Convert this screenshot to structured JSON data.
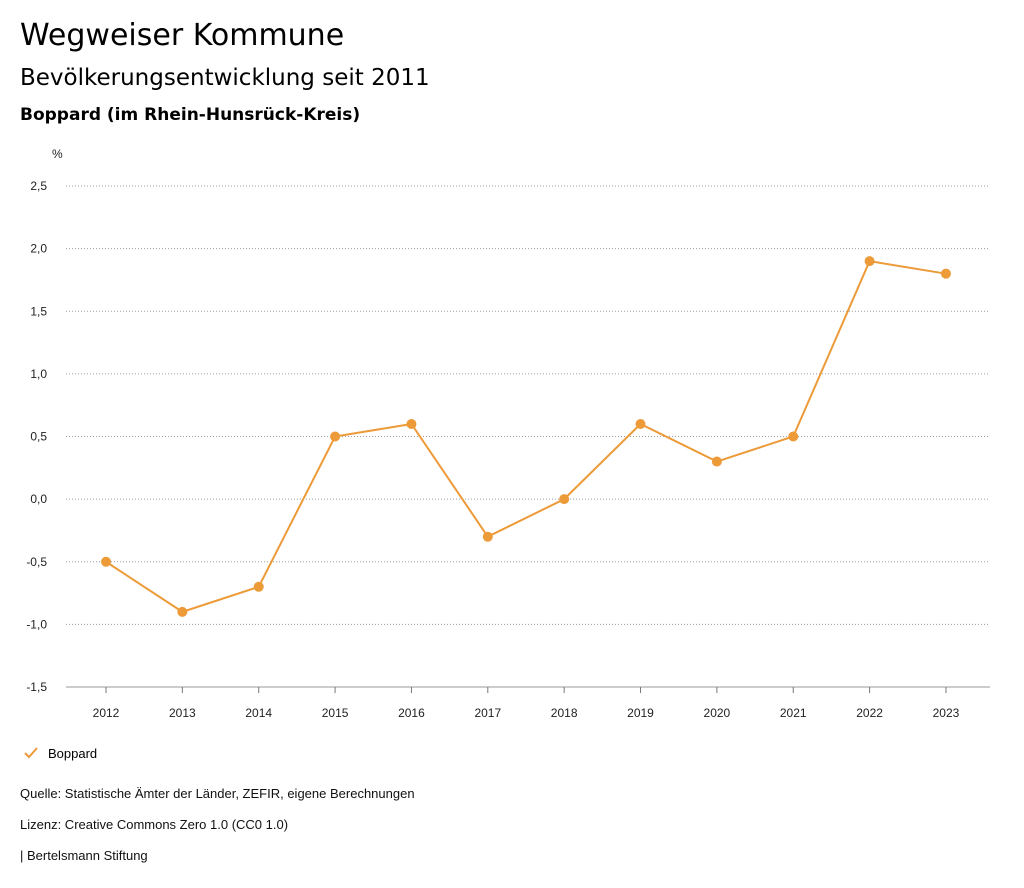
{
  "header": {
    "title": "Wegweiser Kommune",
    "subtitle": "Bevölkerungsentwicklung seit 2011",
    "region": "Boppard (im Rhein-Hunsrück-Kreis)"
  },
  "chart_data": {
    "type": "line",
    "ylabel": "%",
    "ylim": [
      -1.5,
      2.5
    ],
    "yticks": [
      "2,5",
      "2,0",
      "1,5",
      "1,0",
      "0,5",
      "0,0",
      "-0,5",
      "-1,0",
      "-1,5"
    ],
    "ytick_values": [
      2.5,
      2.0,
      1.5,
      1.0,
      0.5,
      0.0,
      -0.5,
      -1.0,
      -1.5
    ],
    "categories": [
      "2012",
      "2013",
      "2014",
      "2015",
      "2016",
      "2017",
      "2018",
      "2019",
      "2020",
      "2021",
      "2022",
      "2023"
    ],
    "series": [
      {
        "name": "Boppard",
        "color": "#ED9A38",
        "values": [
          -0.5,
          -0.9,
          -0.7,
          0.5,
          0.6,
          -0.3,
          0.0,
          0.6,
          0.3,
          0.5,
          1.9,
          1.8
        ]
      }
    ],
    "grid": true,
    "legend_position": "bottom-left"
  },
  "legend": {
    "label": "Boppard",
    "icon": "check-icon"
  },
  "footer": {
    "source": "Quelle: Statistische Ämter der Länder, ZEFIR, eigene Berechnungen",
    "license": "Lizenz: Creative Commons Zero 1.0 (CC0 1.0)",
    "publisher": "| Bertelsmann Stiftung"
  }
}
